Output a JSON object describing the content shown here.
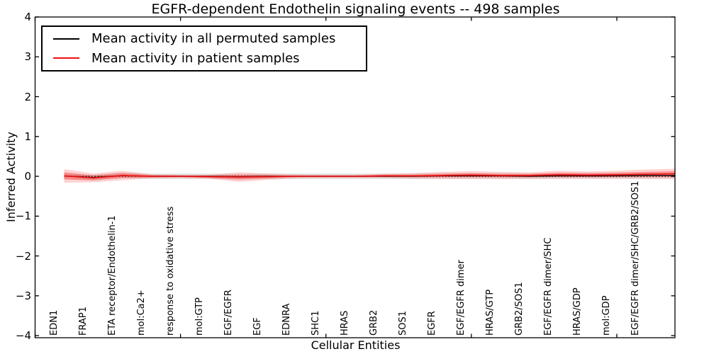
{
  "colors": {
    "frame": "#000000",
    "permuted_line": "#000000",
    "patient_line": "#ee1111",
    "patient_band": "#ff3333",
    "permuted_band": "#9a9a9a",
    "background": "#ffffff"
  },
  "chart_data": {
    "type": "line",
    "title": "EGFR-dependent Endothelin signaling events -- 498 samples",
    "xlabel": "Cellular Entities",
    "ylabel": "Inferred Activity",
    "ylim": [
      -4,
      4
    ],
    "xlim_units": [
      0,
      22
    ],
    "grid": false,
    "legend_position": "upper left",
    "yticks": {
      "values": [
        4,
        3,
        2,
        1,
        0,
        -1,
        -2,
        -3,
        -4
      ],
      "labels": [
        "4",
        "3",
        "2",
        "1",
        "0",
        "−1",
        "−2",
        "−3",
        "−4"
      ]
    },
    "xticks_unlabeled_units": [
      0,
      5,
      10,
      15,
      20
    ],
    "zero_reference_line": 0,
    "categories": [
      "EDN1",
      "FRAP1",
      "ETA receptor/Endothelin-1",
      "mol:Ca2+",
      "response to oxidative stress",
      "mol:GTP",
      "EGF/EGFR",
      "EGF",
      "EDNRA",
      "SHC1",
      "HRAS",
      "GRB2",
      "SOS1",
      "EGFR",
      "EGF/EGFR dimer",
      "HRAS/GTP",
      "GRB2/SOS1",
      "EGF/EGFR dimer/SHC",
      "HRAS/GDP",
      "mol:GDP",
      "EGF/EGFR dimer/SHC/GRB2/SOS1"
    ],
    "series": [
      {
        "name": "Mean activity in all permuted samples",
        "color": "#000000",
        "values": [
          0.01,
          -0.03,
          0.02,
          0.0,
          0.0,
          0.0,
          -0.01,
          0.0,
          0.0,
          0.0,
          0.0,
          0.0,
          0.0,
          0.01,
          0.01,
          0.01,
          0.0,
          0.01,
          0.01,
          0.01,
          0.02
        ],
        "edge_value": 0.02
      },
      {
        "name": "Mean activity in patient samples",
        "color": "#ee1111",
        "values": [
          0.01,
          -0.04,
          0.02,
          0.0,
          0.0,
          -0.01,
          -0.02,
          -0.01,
          0.0,
          0.0,
          0.0,
          0.01,
          0.01,
          0.02,
          0.03,
          0.02,
          0.02,
          0.04,
          0.03,
          0.04,
          0.05
        ],
        "edge_value": 0.06
      }
    ],
    "bands": [
      {
        "name": "permuted-samples-spread",
        "around_series": 0,
        "half_widths": [
          0.07,
          0.07,
          0.07,
          0.07,
          0.07,
          0.07,
          0.07,
          0.07,
          0.07,
          0.07,
          0.07,
          0.07,
          0.07,
          0.07,
          0.07,
          0.07,
          0.07,
          0.07,
          0.07,
          0.07,
          0.07
        ],
        "edge_half_width": 0.07
      },
      {
        "name": "patient-samples-spread-outer",
        "around_series": 1,
        "half_widths": [
          0.17,
          0.11,
          0.12,
          0.05,
          0.04,
          0.05,
          0.12,
          0.08,
          0.05,
          0.04,
          0.04,
          0.05,
          0.07,
          0.09,
          0.1,
          0.09,
          0.08,
          0.1,
          0.09,
          0.1,
          0.12
        ],
        "edge_half_width": 0.13
      },
      {
        "name": "patient-samples-spread-inner",
        "around_series": 1,
        "half_widths": [
          0.09,
          0.06,
          0.06,
          0.03,
          0.02,
          0.03,
          0.06,
          0.04,
          0.02,
          0.02,
          0.02,
          0.03,
          0.03,
          0.04,
          0.05,
          0.04,
          0.04,
          0.05,
          0.05,
          0.05,
          0.06
        ],
        "edge_half_width": 0.07
      }
    ]
  }
}
